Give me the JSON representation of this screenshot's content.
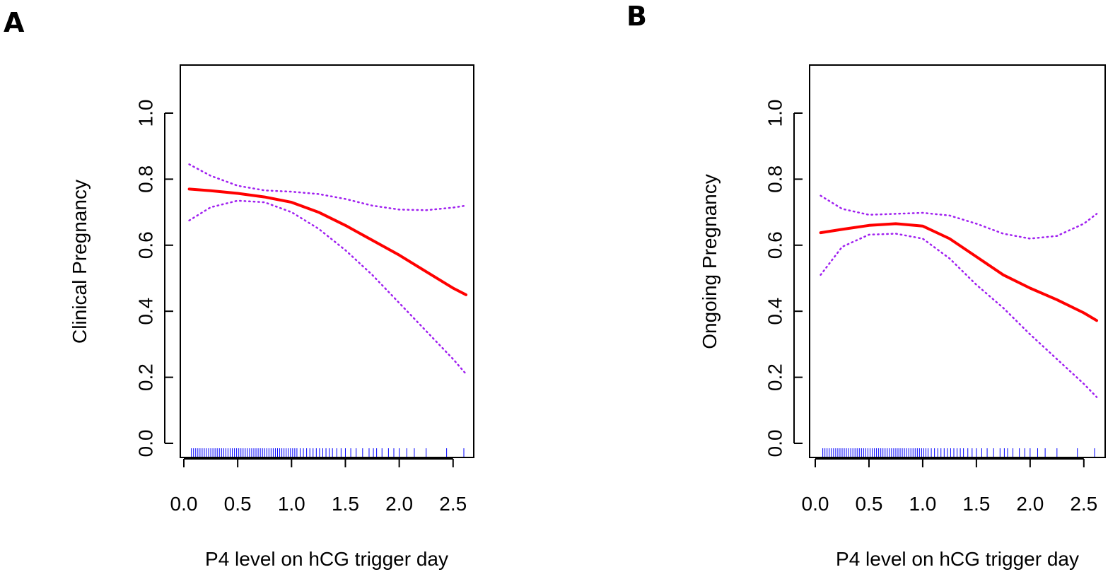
{
  "figure": {
    "panels": [
      {
        "label": "A"
      },
      {
        "label": "B"
      }
    ]
  },
  "colors": {
    "fit": "#ff0000",
    "ci": "#a020f0",
    "rug": "#0000ff",
    "axis": "#000000"
  },
  "chart_data": [
    {
      "type": "line",
      "panel": "A",
      "xlabel": "P4 level on hCG trigger day",
      "ylabel": "Clinical Pregnancy",
      "xlim": [
        0.0,
        2.63
      ],
      "ylim": [
        0.0,
        1.1
      ],
      "x_ticks": [
        "0.0",
        "0.5",
        "1.0",
        "1.5",
        "2.0",
        "2.5"
      ],
      "y_ticks": [
        "0.0",
        "0.2",
        "0.4",
        "0.6",
        "0.8",
        "1.0"
      ],
      "series": [
        {
          "role": "fit",
          "x": [
            0.05,
            0.25,
            0.5,
            0.75,
            1.0,
            1.25,
            1.5,
            1.75,
            2.0,
            2.25,
            2.5,
            2.62
          ],
          "y": [
            0.77,
            0.765,
            0.757,
            0.746,
            0.73,
            0.7,
            0.66,
            0.615,
            0.57,
            0.52,
            0.47,
            0.45
          ]
        },
        {
          "role": "upper_ci",
          "x": [
            0.05,
            0.25,
            0.5,
            0.75,
            1.0,
            1.25,
            1.5,
            1.75,
            2.0,
            2.25,
            2.5,
            2.62
          ],
          "y": [
            0.845,
            0.81,
            0.78,
            0.766,
            0.762,
            0.755,
            0.74,
            0.72,
            0.708,
            0.706,
            0.714,
            0.72
          ]
        },
        {
          "role": "lower_ci",
          "x": [
            0.05,
            0.25,
            0.5,
            0.75,
            1.0,
            1.25,
            1.5,
            1.75,
            2.0,
            2.25,
            2.5,
            2.62
          ],
          "y": [
            0.675,
            0.715,
            0.735,
            0.73,
            0.7,
            0.65,
            0.585,
            0.51,
            0.425,
            0.34,
            0.255,
            0.21
          ]
        }
      ],
      "rug": [
        0.07,
        0.09,
        0.11,
        0.13,
        0.15,
        0.17,
        0.19,
        0.21,
        0.23,
        0.25,
        0.27,
        0.29,
        0.31,
        0.33,
        0.35,
        0.37,
        0.39,
        0.41,
        0.43,
        0.45,
        0.47,
        0.49,
        0.51,
        0.53,
        0.55,
        0.57,
        0.59,
        0.61,
        0.63,
        0.65,
        0.67,
        0.69,
        0.71,
        0.73,
        0.75,
        0.77,
        0.79,
        0.81,
        0.83,
        0.85,
        0.87,
        0.89,
        0.91,
        0.93,
        0.95,
        0.97,
        0.99,
        1.01,
        1.03,
        1.05,
        1.08,
        1.11,
        1.14,
        1.17,
        1.2,
        1.23,
        1.26,
        1.29,
        1.32,
        1.35,
        1.38,
        1.42,
        1.46,
        1.5,
        1.55,
        1.6,
        1.66,
        1.72,
        1.76,
        1.79,
        1.84,
        1.9,
        1.95,
        2.0,
        2.07,
        2.14,
        2.25,
        2.44,
        2.6
      ]
    },
    {
      "type": "line",
      "panel": "B",
      "xlabel": "P4 level on hCG trigger day",
      "ylabel": "Ongoing Pregnancy",
      "xlim": [
        0.0,
        2.63
      ],
      "ylim": [
        0.0,
        1.1
      ],
      "x_ticks": [
        "0.0",
        "0.5",
        "1.0",
        "1.5",
        "2.0",
        "2.5"
      ],
      "y_ticks": [
        "0.0",
        "0.2",
        "0.4",
        "0.6",
        "0.8",
        "1.0"
      ],
      "series": [
        {
          "role": "fit",
          "x": [
            0.05,
            0.25,
            0.5,
            0.75,
            1.0,
            1.25,
            1.5,
            1.75,
            2.0,
            2.25,
            2.5,
            2.62
          ],
          "y": [
            0.638,
            0.648,
            0.66,
            0.665,
            0.658,
            0.62,
            0.565,
            0.51,
            0.47,
            0.435,
            0.395,
            0.372
          ]
        },
        {
          "role": "upper_ci",
          "x": [
            0.05,
            0.25,
            0.5,
            0.75,
            1.0,
            1.25,
            1.5,
            1.75,
            2.0,
            2.25,
            2.5,
            2.62
          ],
          "y": [
            0.75,
            0.71,
            0.692,
            0.695,
            0.698,
            0.69,
            0.665,
            0.635,
            0.62,
            0.628,
            0.665,
            0.695
          ]
        },
        {
          "role": "lower_ci",
          "x": [
            0.05,
            0.25,
            0.5,
            0.75,
            1.0,
            1.25,
            1.5,
            1.75,
            2.0,
            2.25,
            2.5,
            2.62
          ],
          "y": [
            0.51,
            0.595,
            0.632,
            0.635,
            0.62,
            0.56,
            0.48,
            0.41,
            0.33,
            0.255,
            0.18,
            0.14
          ]
        }
      ],
      "rug": [
        0.07,
        0.09,
        0.11,
        0.13,
        0.15,
        0.17,
        0.19,
        0.21,
        0.23,
        0.25,
        0.27,
        0.29,
        0.31,
        0.33,
        0.35,
        0.37,
        0.39,
        0.41,
        0.43,
        0.45,
        0.47,
        0.49,
        0.51,
        0.53,
        0.55,
        0.57,
        0.59,
        0.61,
        0.63,
        0.65,
        0.67,
        0.69,
        0.71,
        0.73,
        0.75,
        0.77,
        0.79,
        0.81,
        0.83,
        0.85,
        0.87,
        0.89,
        0.91,
        0.93,
        0.95,
        0.97,
        0.99,
        1.01,
        1.03,
        1.05,
        1.08,
        1.11,
        1.14,
        1.17,
        1.2,
        1.23,
        1.26,
        1.29,
        1.32,
        1.35,
        1.38,
        1.42,
        1.46,
        1.5,
        1.55,
        1.6,
        1.66,
        1.72,
        1.76,
        1.79,
        1.84,
        1.9,
        1.95,
        2.0,
        2.07,
        2.14,
        2.25,
        2.44,
        2.6
      ]
    }
  ]
}
